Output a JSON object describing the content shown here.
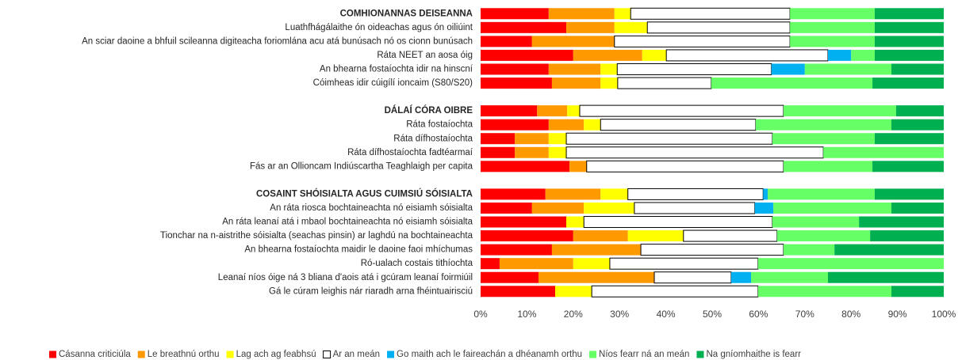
{
  "chart_data": {
    "type": "stacked_barh",
    "categories": [
      "COMHIONANNAS DEISEANNA",
      "Luathfhágálaithe ón oideachas agus ón oiliúint",
      "An sciar daoine a bhfuil scileanna digiteacha foriomlána acu atá bunúsach nó os cionn bunúsach",
      "Ráta NEET an aosa óig",
      "An bhearna fostaíochta idir na hinscní",
      "Cóimheas idir cúigílí ioncaim (S80/S20)",
      null,
      "DÁLAÍ CÓRA OIBRE",
      "Ráta fostaíochta",
      "Ráta dífhostaíochta",
      "Ráta dífhostaíochta fadtéarmaí",
      "Fás ar an Ollioncam Indiúscartha Teaghlaigh per capita",
      null,
      "COSAINT SHÓISIALTA AGUS CUIMSIÚ SÓISIALTA",
      "An ráta riosca bochtaineachta nó eisiamh sóisialta",
      "An ráta leanaí atá i mbaol bochtaineachta nó eisiamh sóisialta",
      "Tionchar na n-aistrithe sóisialta (seachas pinsin) ar laghdú na bochtaineachta",
      "An bhearna fostaíochta maidir le daoine faoi mhíchumas",
      "Ró-ualach costais tithíochta",
      "Leanaí níos óige ná 3 bliana d'aois atá i gcúram leanaí foirmiúil",
      "Gá le cúram leighis nár riaradh arna fhéintuairisciú"
    ],
    "series": [
      {
        "name": "Cásanna criticiúla",
        "color": "#ff0000",
        "values": [
          14.7,
          18.5,
          11.1,
          20.0,
          14.7,
          15.4,
          null,
          12.2,
          14.7,
          7.4,
          7.4,
          19.2,
          null,
          14.0,
          11.1,
          18.5,
          20.0,
          15.4,
          4.1,
          12.5,
          16.1
        ]
      },
      {
        "name": "Le breathnú orthu",
        "color": "#ff9900",
        "values": [
          14.2,
          10.4,
          17.8,
          14.9,
          11.2,
          10.5,
          null,
          6.5,
          7.6,
          7.3,
          7.3,
          3.7,
          null,
          11.9,
          11.2,
          0,
          11.8,
          19.2,
          15.9,
          25.0,
          0
        ]
      },
      {
        "name": "Lag ach ag feabhsú",
        "color": "#ffff00",
        "values": [
          3.5,
          7.1,
          0,
          5.2,
          3.6,
          3.7,
          null,
          2.7,
          3.6,
          3.8,
          3.8,
          0,
          null,
          5.9,
          10.9,
          3.8,
          12.0,
          0,
          7.9,
          0,
          7.9
        ]
      },
      {
        "name": "Ar an meán",
        "color": "#ffffff",
        "values": [
          34.4,
          30.8,
          37.9,
          34.9,
          33.3,
          20.2,
          null,
          44.0,
          33.5,
          44.5,
          55.5,
          42.5,
          null,
          29.2,
          26.0,
          40.7,
          20.2,
          30.8,
          32.0,
          16.6,
          35.9
        ]
      },
      {
        "name": "Go maith ach le faireachán a dhéanamh orthu",
        "color": "#00b0f0",
        "values": [
          0,
          0,
          0,
          5.0,
          7.2,
          0,
          null,
          0,
          0,
          0,
          0,
          0,
          null,
          1.0,
          4.0,
          0,
          0,
          0,
          0,
          4.3,
          0
        ]
      },
      {
        "name": "Níos fearr ná an meán",
        "color": "#66ff66",
        "values": [
          18.3,
          18.3,
          18.3,
          5.1,
          18.7,
          34.8,
          null,
          24.3,
          29.3,
          22.1,
          26.0,
          19.2,
          null,
          23.1,
          25.5,
          18.7,
          20.1,
          11.0,
          40.1,
          16.6,
          28.8
        ]
      },
      {
        "name": "Na gníomhaithe is fearr",
        "color": "#00b050",
        "values": [
          14.9,
          14.9,
          14.9,
          14.9,
          11.3,
          15.4,
          null,
          10.3,
          11.3,
          14.9,
          0,
          15.4,
          null,
          14.9,
          11.3,
          18.3,
          15.9,
          23.6,
          0,
          25.0,
          11.3
        ]
      }
    ],
    "xlim": [
      0,
      100
    ],
    "xticks": [
      {
        "value": 0,
        "label": "0%"
      },
      {
        "value": 10,
        "label": "10%"
      },
      {
        "value": 20,
        "label": "20%"
      },
      {
        "value": 30,
        "label": "30%"
      },
      {
        "value": 40,
        "label": "40%"
      },
      {
        "value": 50,
        "label": "50%"
      },
      {
        "value": 60,
        "label": "60%"
      },
      {
        "value": 70,
        "label": "70%"
      },
      {
        "value": 80,
        "label": "80%"
      },
      {
        "value": 90,
        "label": "90%"
      },
      {
        "value": 100,
        "label": "100%"
      }
    ],
    "legend": "bottom"
  }
}
